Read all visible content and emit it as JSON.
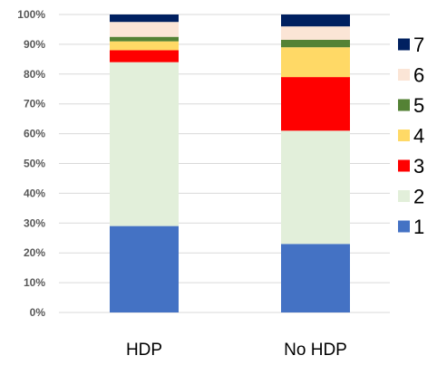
{
  "chart_data": {
    "type": "bar",
    "stacked": true,
    "categories": [
      "HDP",
      "No HDP"
    ],
    "ylim": [
      0,
      100
    ],
    "yticks": [
      "0%",
      "10%",
      "20%",
      "30%",
      "40%",
      "50%",
      "60%",
      "70%",
      "80%",
      "90%",
      "100%"
    ],
    "grid": true,
    "legend_position": "right",
    "series": [
      {
        "name": "1",
        "color": "#4472c4",
        "values": [
          29,
          23
        ]
      },
      {
        "name": "2",
        "color": "#e2efda",
        "values": [
          55,
          38
        ]
      },
      {
        "name": "3",
        "color": "#ff0000",
        "values": [
          4,
          18
        ]
      },
      {
        "name": "4",
        "color": "#ffd966",
        "values": [
          3,
          10
        ]
      },
      {
        "name": "5",
        "color": "#548235",
        "values": [
          1.5,
          2.5
        ]
      },
      {
        "name": "6",
        "color": "#fbe5d6",
        "values": [
          5,
          4.5
        ]
      },
      {
        "name": "7",
        "color": "#002060",
        "values": [
          2.5,
          4
        ]
      }
    ]
  }
}
